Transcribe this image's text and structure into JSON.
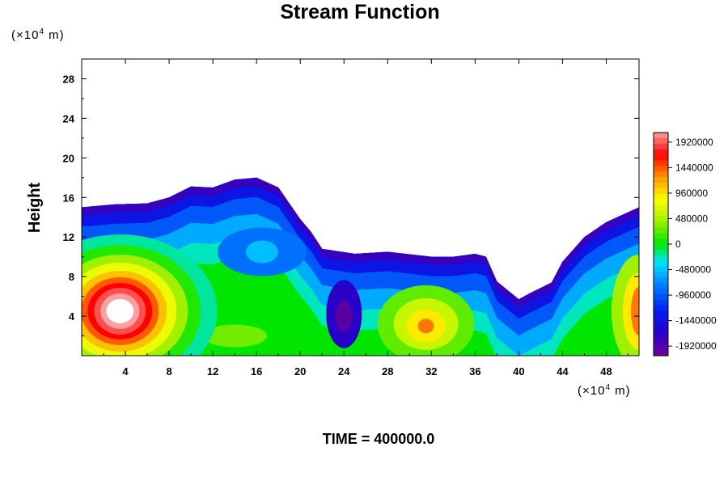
{
  "chart_data": {
    "type": "heatmap",
    "subtype": "filled-contour",
    "title": "Stream Function",
    "ylabel": "Height",
    "y_unit_prefix": "(×10",
    "y_unit_exp": "4",
    "y_unit_suffix": " m)",
    "x_unit_prefix": "(×10",
    "x_unit_exp": "4",
    "x_unit_suffix": " m)",
    "footer": "TIME = 400000.0",
    "xlim": [
      0,
      51
    ],
    "ylim": [
      0,
      30
    ],
    "x_ticks": [
      4,
      8,
      12,
      16,
      20,
      24,
      28,
      32,
      36,
      40,
      44,
      48
    ],
    "y_ticks": [
      4,
      8,
      12,
      16,
      20,
      24,
      28
    ],
    "colorbar": {
      "min": -2100000,
      "max": 2100000,
      "ticks": [
        1920000,
        1440000,
        960000,
        480000,
        0,
        -480000,
        -960000,
        -1440000,
        -1920000
      ]
    },
    "boundary_top": [
      [
        0,
        15
      ],
      [
        3,
        15.3
      ],
      [
        6,
        15.4
      ],
      [
        8,
        16
      ],
      [
        10,
        17.1
      ],
      [
        12,
        17
      ],
      [
        14,
        17.8
      ],
      [
        16,
        18
      ],
      [
        18,
        17
      ],
      [
        20,
        13.8
      ],
      [
        21,
        12.5
      ],
      [
        22,
        10.8
      ],
      [
        25,
        10.3
      ],
      [
        28,
        10.5
      ],
      [
        32,
        10
      ],
      [
        34,
        10
      ],
      [
        36,
        10.3
      ],
      [
        37,
        10
      ],
      [
        38,
        7.5
      ],
      [
        40,
        5.7
      ],
      [
        41,
        6.3
      ],
      [
        43,
        7.4
      ],
      [
        44,
        9.5
      ],
      [
        46,
        12
      ],
      [
        48,
        13.5
      ],
      [
        51,
        15
      ]
    ],
    "features": [
      {
        "x": 3.5,
        "y": 4.5,
        "value": 2100000
      },
      {
        "x": 31.5,
        "y": 3,
        "value": 800000
      },
      {
        "x": 24,
        "y": 4,
        "value": -1900000
      },
      {
        "x": 16.5,
        "y": 10.5,
        "value": -900000
      },
      {
        "x": 51,
        "y": 4.5,
        "value": 1200000
      }
    ]
  }
}
